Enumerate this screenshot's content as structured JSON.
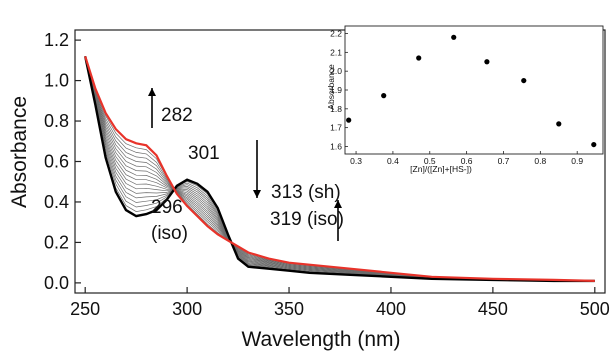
{
  "chart_data": [
    {
      "type": "line",
      "xlabel": "Wavelength (nm)",
      "ylabel": "Absorbance",
      "xlim": [
        245,
        505
      ],
      "ylim": [
        -0.05,
        1.25
      ],
      "xticks": [
        "250",
        "300",
        "350",
        "400",
        "450",
        "500"
      ],
      "yticks": [
        "0.0",
        "0.2",
        "0.4",
        "0.6",
        "0.8",
        "1.0",
        "1.2"
      ],
      "xtick_values": [
        250,
        300,
        350,
        400,
        450,
        500
      ],
      "ytick_values": [
        0.0,
        0.2,
        0.4,
        0.6,
        0.8,
        1.0,
        1.2
      ],
      "colors": {
        "initial": "#000000",
        "final": "#e8332a",
        "intermediate": "#6b6b6b"
      },
      "series": [
        {
          "values_x": [
            250,
            255,
            260,
            265,
            270,
            275,
            280,
            285,
            290,
            295,
            300,
            305,
            310,
            315,
            320,
            325,
            330,
            340,
            350,
            360,
            380,
            400,
            420,
            450,
            480,
            500
          ],
          "values_y": [
            1.12,
            0.88,
            0.62,
            0.45,
            0.36,
            0.33,
            0.34,
            0.36,
            0.41,
            0.48,
            0.51,
            0.49,
            0.45,
            0.37,
            0.24,
            0.12,
            0.08,
            0.07,
            0.06,
            0.05,
            0.04,
            0.03,
            0.02,
            0.015,
            0.01,
            0.01
          ]
        },
        {
          "values_x": [
            250,
            255,
            260,
            265,
            270,
            275,
            280,
            285,
            290,
            295,
            300,
            305,
            310,
            315,
            320,
            325,
            330,
            340,
            350,
            360,
            380,
            400,
            420,
            450,
            480,
            500
          ],
          "values_y": [
            1.12,
            0.96,
            0.84,
            0.76,
            0.71,
            0.69,
            0.68,
            0.63,
            0.53,
            0.44,
            0.38,
            0.33,
            0.28,
            0.24,
            0.21,
            0.18,
            0.15,
            0.12,
            0.1,
            0.09,
            0.07,
            0.05,
            0.03,
            0.02,
            0.015,
            0.01
          ]
        }
      ],
      "annotations": [
        "282",
        "301",
        "313 (sh)",
        "296",
        "(iso)",
        "319 (iso)"
      ]
    },
    {
      "type": "scatter",
      "xlabel": "[Zn]/([Zn]+[HS-])",
      "ylabel": "Absorbance",
      "xlim": [
        0.27,
        0.97
      ],
      "ylim": [
        1.56,
        2.24
      ],
      "xticks": [
        "0.3",
        "0.4",
        "0.5",
        "0.6",
        "0.7",
        "0.8",
        "0.9"
      ],
      "yticks": [
        "1.6",
        "1.7",
        "1.8",
        "1.9",
        "2.0",
        "2.1",
        "2.2"
      ],
      "xtick_values": [
        0.3,
        0.4,
        0.5,
        0.6,
        0.7,
        0.8,
        0.9
      ],
      "ytick_values": [
        1.6,
        1.7,
        1.8,
        1.9,
        2.0,
        2.1,
        2.2
      ],
      "x": [
        0.28,
        0.375,
        0.47,
        0.565,
        0.655,
        0.755,
        0.85,
        0.945
      ],
      "y": [
        1.74,
        1.87,
        2.07,
        2.18,
        2.05,
        1.95,
        1.72,
        1.61
      ]
    }
  ]
}
